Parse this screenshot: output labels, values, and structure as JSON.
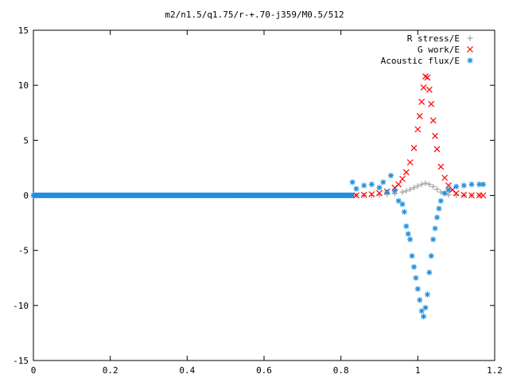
{
  "chart_data": {
    "type": "scatter",
    "title": "m2/n1.5/q1.75/r-+.70-j359/M0.5/512",
    "xlabel": "",
    "ylabel": "",
    "xlim": [
      0,
      1.2
    ],
    "ylim": [
      -15,
      15
    ],
    "x_ticks": [
      0,
      0.2,
      0.4,
      0.6,
      0.8,
      1,
      1.2
    ],
    "y_ticks": [
      -15,
      -10,
      -5,
      0,
      5,
      10,
      15
    ],
    "x_tick_labels": [
      "0",
      "0.2",
      "0.4",
      "0.6",
      "0.8",
      "1",
      "1.2"
    ],
    "y_tick_labels": [
      "-15",
      "-10",
      "-5",
      "0",
      "5",
      "10",
      "15"
    ],
    "grid": false,
    "legend_position": "top-right",
    "series": [
      {
        "name": "R stress/E",
        "marker": "plus",
        "color": "#a0a0a0",
        "x": [
          0.84,
          0.86,
          0.88,
          0.9,
          0.92,
          0.94,
          0.96,
          0.97,
          0.98,
          0.99,
          1.0,
          1.01,
          1.02,
          1.03,
          1.04,
          1.05,
          1.06,
          1.07,
          1.08,
          1.1,
          1.12,
          1.14,
          1.16
        ],
        "y": [
          0.0,
          0.0,
          0.0,
          0.05,
          0.1,
          0.15,
          0.3,
          0.4,
          0.55,
          0.7,
          0.85,
          1.0,
          1.1,
          1.0,
          0.8,
          0.55,
          0.3,
          0.15,
          0.05,
          0.0,
          0.0,
          0.0,
          0.0
        ]
      },
      {
        "name": "G work/E",
        "marker": "cross",
        "color": "#ff0000",
        "x": [
          0.84,
          0.86,
          0.88,
          0.9,
          0.92,
          0.94,
          0.95,
          0.96,
          0.97,
          0.98,
          0.99,
          1.0,
          1.005,
          1.01,
          1.015,
          1.02,
          1.025,
          1.03,
          1.035,
          1.04,
          1.045,
          1.05,
          1.06,
          1.07,
          1.08,
          1.09,
          1.1,
          1.12,
          1.14,
          1.16,
          1.17
        ],
        "y": [
          0.0,
          0.05,
          0.1,
          0.2,
          0.35,
          0.7,
          1.0,
          1.5,
          2.1,
          3.0,
          4.3,
          6.0,
          7.2,
          8.5,
          9.8,
          10.8,
          10.7,
          9.6,
          8.3,
          6.8,
          5.4,
          4.2,
          2.6,
          1.6,
          0.9,
          0.5,
          0.2,
          0.05,
          0.0,
          0.0,
          0.0
        ]
      },
      {
        "name": "Acoustic flux/E",
        "marker": "asterisk",
        "color": "#1f8fe0",
        "x": [
          0.83,
          0.84,
          0.86,
          0.88,
          0.9,
          0.91,
          0.92,
          0.93,
          0.94,
          0.95,
          0.96,
          0.965,
          0.97,
          0.975,
          0.98,
          0.985,
          0.99,
          0.995,
          1.0,
          1.005,
          1.01,
          1.015,
          1.02,
          1.025,
          1.03,
          1.035,
          1.04,
          1.045,
          1.05,
          1.055,
          1.06,
          1.07,
          1.08,
          1.1,
          1.12,
          1.14,
          1.16,
          1.17
        ],
        "y": [
          1.2,
          0.6,
          0.9,
          1.0,
          0.7,
          1.2,
          0.3,
          1.8,
          0.4,
          -0.5,
          -0.8,
          -1.5,
          -2.8,
          -3.5,
          -4.0,
          -5.5,
          -6.5,
          -7.5,
          -8.5,
          -9.5,
          -10.5,
          -11.0,
          -10.2,
          -9.0,
          -7.0,
          -5.5,
          -4.0,
          -3.0,
          -2.0,
          -1.2,
          -0.5,
          0.2,
          0.5,
          0.8,
          0.9,
          1.0,
          1.0,
          1.0
        ]
      }
    ],
    "baseline_series_x_range": [
      0,
      0.83
    ],
    "baseline_series_value": 0
  }
}
